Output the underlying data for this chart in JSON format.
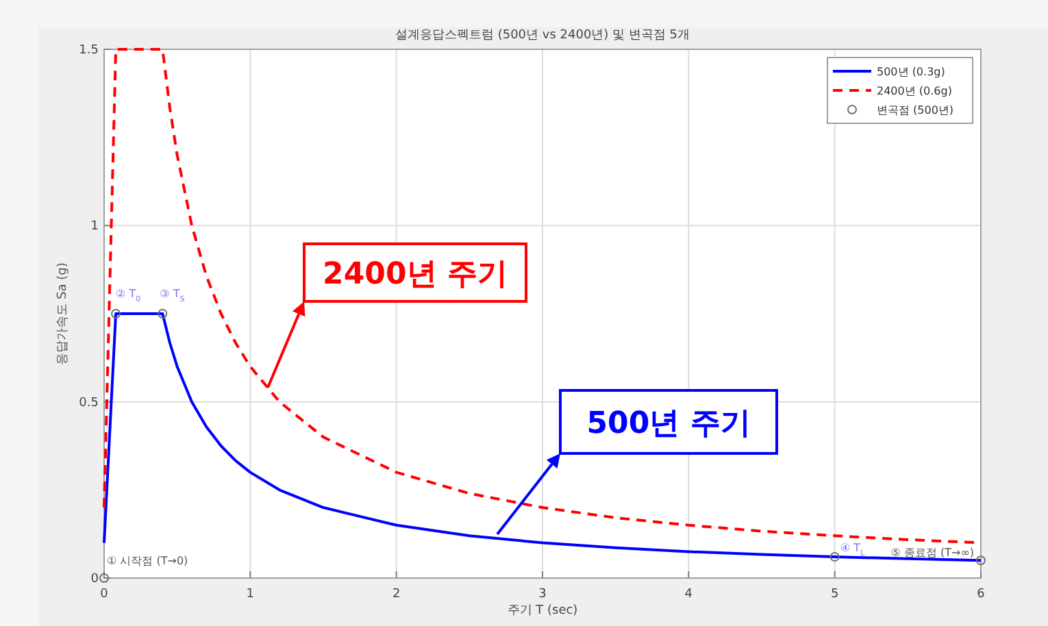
{
  "chart_data": {
    "type": "line",
    "title": "설계응답스펙트럼 (500년 vs 2400년) 및 변곡점 5개",
    "xlabel": "주기 T (sec)",
    "ylabel": "응답가속도 Sa (g)",
    "xlim": [
      0,
      6
    ],
    "ylim": [
      0,
      1.5
    ],
    "xticks": [
      0,
      1,
      2,
      3,
      4,
      5,
      6
    ],
    "yticks": [
      0,
      0.5,
      1,
      1.5
    ],
    "grid": true,
    "legend": "top right",
    "series": [
      {
        "name": "500년 (0.3g)",
        "color": "#0000ff",
        "line_style": "solid",
        "x": [
          0,
          0.08,
          0.4,
          0.45,
          0.5,
          0.6,
          0.7,
          0.8,
          0.9,
          1,
          1.2,
          1.5,
          2,
          2.5,
          3,
          3.5,
          4,
          4.5,
          5,
          5.5,
          6
        ],
        "values": [
          0.1,
          0.75,
          0.75,
          0.667,
          0.6,
          0.5,
          0.429,
          0.375,
          0.333,
          0.3,
          0.25,
          0.2,
          0.15,
          0.12,
          0.1,
          0.086,
          0.075,
          0.067,
          0.06,
          0.055,
          0.05
        ]
      },
      {
        "name": "2400년 (0.6g)",
        "color": "#ff0000",
        "line_style": "dashed",
        "x": [
          0,
          0.08,
          0.4,
          0.45,
          0.5,
          0.6,
          0.7,
          0.8,
          0.9,
          1,
          1.2,
          1.5,
          2,
          2.5,
          3,
          3.5,
          4,
          4.5,
          5,
          5.5,
          6
        ],
        "values": [
          0.2,
          1.5,
          1.5,
          1.333,
          1.2,
          1.0,
          0.857,
          0.75,
          0.667,
          0.6,
          0.5,
          0.4,
          0.3,
          0.24,
          0.2,
          0.171,
          0.15,
          0.133,
          0.12,
          0.109,
          0.1
        ]
      },
      {
        "name": "변곡점 (500년)",
        "type": "scatter",
        "marker": "circle",
        "color": "#707070",
        "x": [
          0,
          0.08,
          0.4,
          5,
          6
        ],
        "values": [
          0,
          0.75,
          0.75,
          0.06,
          0.05
        ]
      }
    ],
    "annotations": [
      {
        "text": "① 시작점 (T→0)",
        "x": 0,
        "y": 0
      },
      {
        "text": "② T$_{0}$",
        "x": 0.08,
        "y": 0.75
      },
      {
        "text": "③ T$_{S}$",
        "x": 0.4,
        "y": 0.75
      },
      {
        "text": "④ T$_{L}$",
        "x": 5,
        "y": 0.06
      },
      {
        "text": "⑤ 종료점 (T→∞)",
        "x": 6,
        "y": 0.05
      },
      {
        "text": "2400년 주기",
        "x": 1.12,
        "y": 0.54
      },
      "500년 주기"
    ]
  }
}
